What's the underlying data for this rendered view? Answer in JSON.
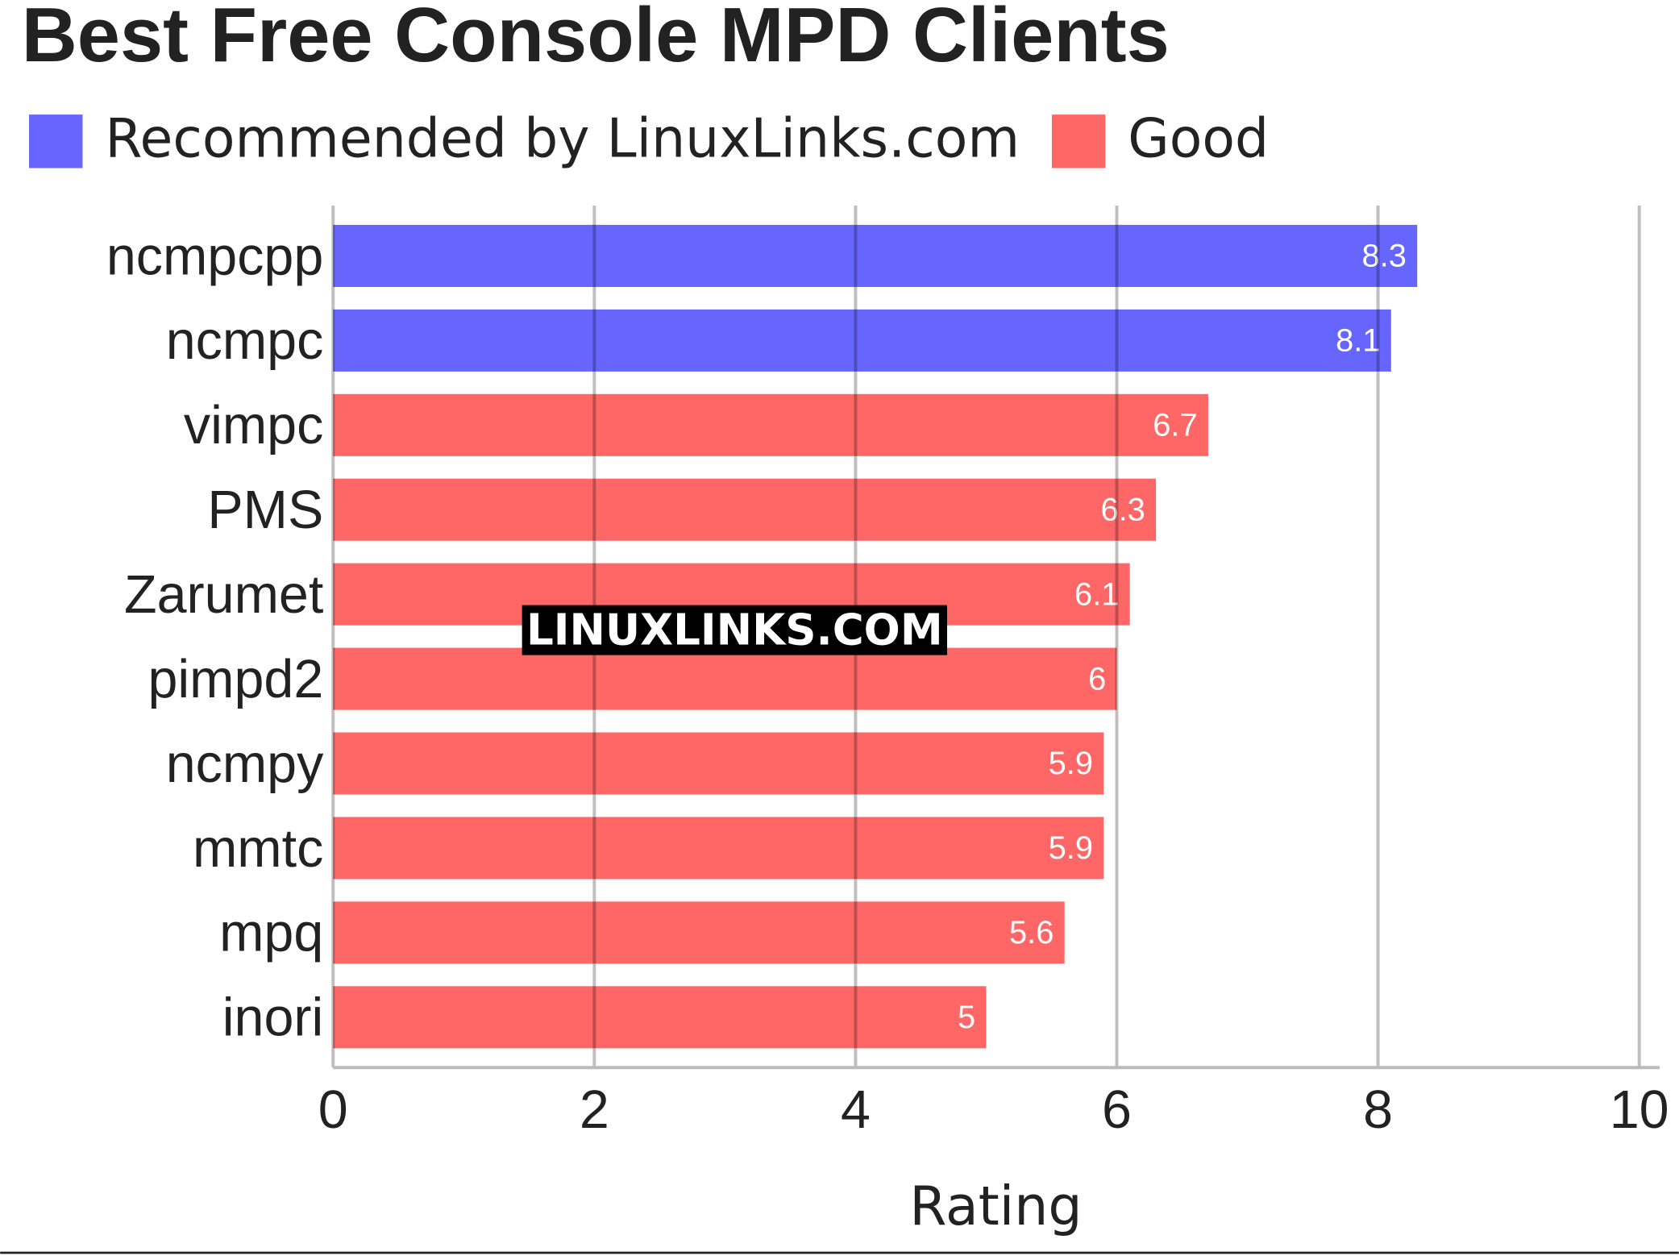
{
  "chart_data": {
    "type": "bar",
    "orientation": "horizontal",
    "title": "Best Free Console MPD Clients",
    "categories": [
      "ncmpcpp",
      "ncmpc",
      "vimpc",
      "PMS",
      "Zarumet",
      "pimpd2",
      "ncmpy",
      "mmtc",
      "mpq",
      "inori"
    ],
    "series": [
      {
        "name": "Recommended by LinuxLinks.com",
        "color": "#6666ff",
        "values": [
          8.3,
          8.1,
          null,
          null,
          null,
          null,
          null,
          null,
          null,
          null
        ]
      },
      {
        "name": "Good",
        "color": "#ff6666",
        "values": [
          null,
          null,
          6.7,
          6.3,
          6.1,
          6,
          5.9,
          5.9,
          5.6,
          5
        ]
      }
    ],
    "xlabel": "Rating",
    "xlim": [
      0,
      10
    ],
    "xticks": [
      0,
      2,
      4,
      6,
      8,
      10
    ],
    "grid": true,
    "watermark": "LINUXLINKS.COM"
  }
}
